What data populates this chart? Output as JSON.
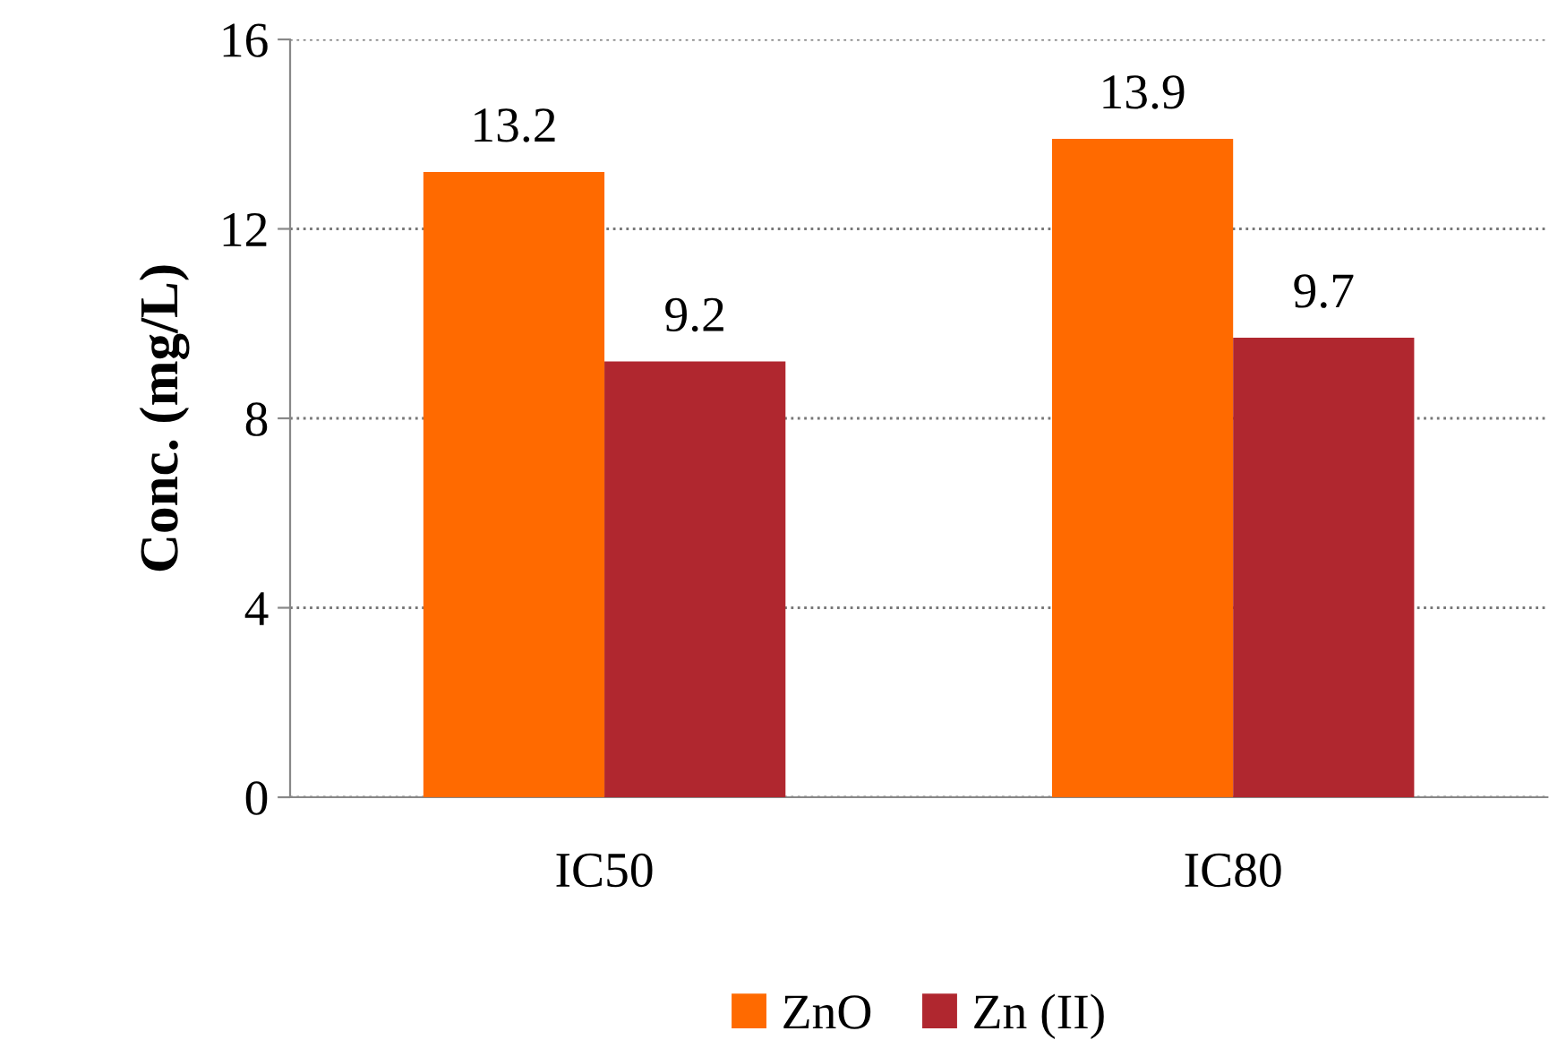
{
  "chart_data": {
    "type": "bar",
    "ylabel": "Conc. (mg/L)",
    "categories": [
      "IC50",
      "IC80"
    ],
    "series": [
      {
        "name": "ZnO",
        "color": "#ff6a00",
        "values": [
          13.2,
          13.9
        ]
      },
      {
        "name": "Zn (II)",
        "color": "#b0272f",
        "values": [
          9.2,
          9.7
        ]
      }
    ],
    "ylim": [
      0,
      16
    ],
    "yticks": [
      0,
      4,
      8,
      12,
      16
    ],
    "grid": "y",
    "legend": "bottom",
    "data_labels": true
  }
}
